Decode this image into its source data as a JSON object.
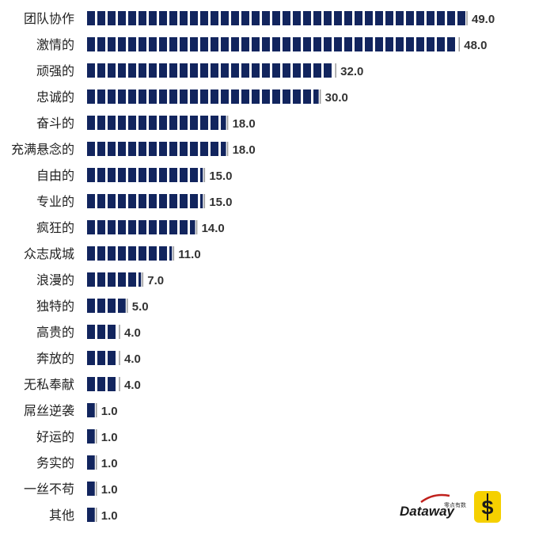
{
  "chart_data": {
    "type": "bar",
    "orientation": "horizontal",
    "categories": [
      "团队协作",
      "激情的",
      "顽强的",
      "忠诚的",
      "奋斗的",
      "充满悬念的",
      "自由的",
      "专业的",
      "疯狂的",
      "众志成城",
      "浪漫的",
      "独特的",
      "高贵的",
      "奔放的",
      "无私奉献",
      "屌丝逆袭",
      "好运的",
      "务实的",
      "一丝不苟",
      "其他"
    ],
    "values": [
      49.0,
      48.0,
      32.0,
      30.0,
      18.0,
      18.0,
      15.0,
      15.0,
      14.0,
      11.0,
      7.0,
      5.0,
      4.0,
      4.0,
      4.0,
      1.0,
      1.0,
      1.0,
      1.0,
      1.0
    ],
    "value_labels": [
      "49.0",
      "48.0",
      "32.0",
      "30.0",
      "18.0",
      "18.0",
      "15.0",
      "15.0",
      "14.0",
      "11.0",
      "7.0",
      "5.0",
      "4.0",
      "4.0",
      "4.0",
      "1.0",
      "1.0",
      "1.0",
      "1.0",
      "1.0"
    ],
    "xlim": [
      0,
      49
    ],
    "grid": false,
    "legend": "none",
    "bar_color": "#12255e"
  },
  "logos": {
    "dataway_main": "Dataway",
    "dataway_sub": "零点有数",
    "brand_icon": "s-brand-icon",
    "brand_color": "#f5d000"
  }
}
